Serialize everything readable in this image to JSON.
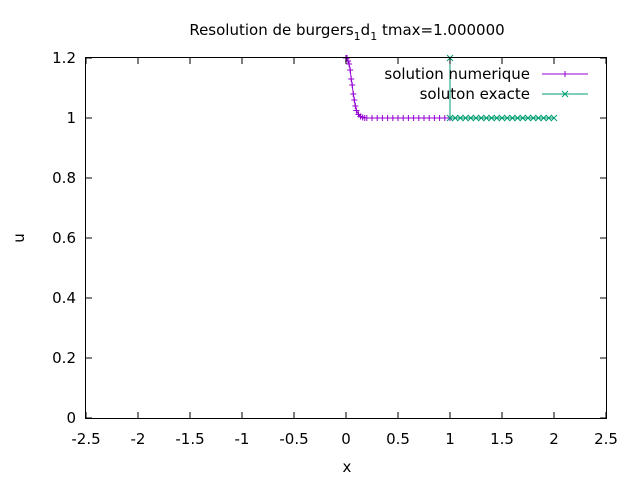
{
  "chart_data": {
    "type": "line",
    "title": {
      "prefix": "Resolution de burgers",
      "sub1": "1",
      "mid": "d",
      "sub2": "1",
      "suffix": " tmax=1.000000"
    },
    "xlabel": "x",
    "ylabel": "u",
    "xlim": [
      -2.5,
      2.5
    ],
    "ylim": [
      0,
      1.2
    ],
    "xticks": [
      "-2.5",
      "-2",
      "-1.5",
      "-1",
      "-0.5",
      "0",
      "0.5",
      "1",
      "1.5",
      "2",
      "2.5"
    ],
    "xtick_values": [
      -2.5,
      -2,
      -1.5,
      -1,
      -0.5,
      0,
      0.5,
      1,
      1.5,
      2,
      2.5
    ],
    "yticks": [
      "0",
      "0.2",
      "0.4",
      "0.6",
      "0.8",
      "1",
      "1.2"
    ],
    "ytick_values": [
      0,
      0.2,
      0.4,
      0.6,
      0.8,
      1,
      1.2
    ],
    "grid": false,
    "legend_position": "top-right",
    "series": [
      {
        "name": "solution numerique",
        "color": "#9400d3",
        "marker": "plus",
        "x": [
          0.0,
          0.01,
          0.02,
          0.03,
          0.04,
          0.05,
          0.06,
          0.07,
          0.08,
          0.09,
          0.1,
          0.12,
          0.14,
          0.16,
          0.18,
          0.2,
          0.25,
          0.3,
          0.35,
          0.4,
          0.45,
          0.5,
          0.55,
          0.6,
          0.65,
          0.7,
          0.75,
          0.8,
          0.85,
          0.9,
          0.95,
          1.0
        ],
        "y": [
          1.2,
          1.2,
          1.19,
          1.18,
          1.16,
          1.13,
          1.11,
          1.08,
          1.06,
          1.04,
          1.025,
          1.012,
          1.005,
          1.002,
          1.0,
          1.0,
          1.0,
          1.0,
          1.0,
          1.0,
          1.0,
          1.0,
          1.0,
          1.0,
          1.0,
          1.0,
          1.0,
          1.0,
          1.0,
          1.0,
          1.0,
          1.0
        ]
      },
      {
        "name": "soluton exacte",
        "color": "#009e73",
        "marker": "cross",
        "x": [
          1.0,
          1.0,
          1.05,
          1.1,
          1.15,
          1.2,
          1.25,
          1.3,
          1.35,
          1.4,
          1.45,
          1.5,
          1.55,
          1.6,
          1.65,
          1.7,
          1.75,
          1.8,
          1.85,
          1.9,
          1.95,
          2.0
        ],
        "y": [
          1.2,
          1.0,
          1.0,
          1.0,
          1.0,
          1.0,
          1.0,
          1.0,
          1.0,
          1.0,
          1.0,
          1.0,
          1.0,
          1.0,
          1.0,
          1.0,
          1.0,
          1.0,
          1.0,
          1.0,
          1.0,
          1.0
        ]
      }
    ]
  }
}
